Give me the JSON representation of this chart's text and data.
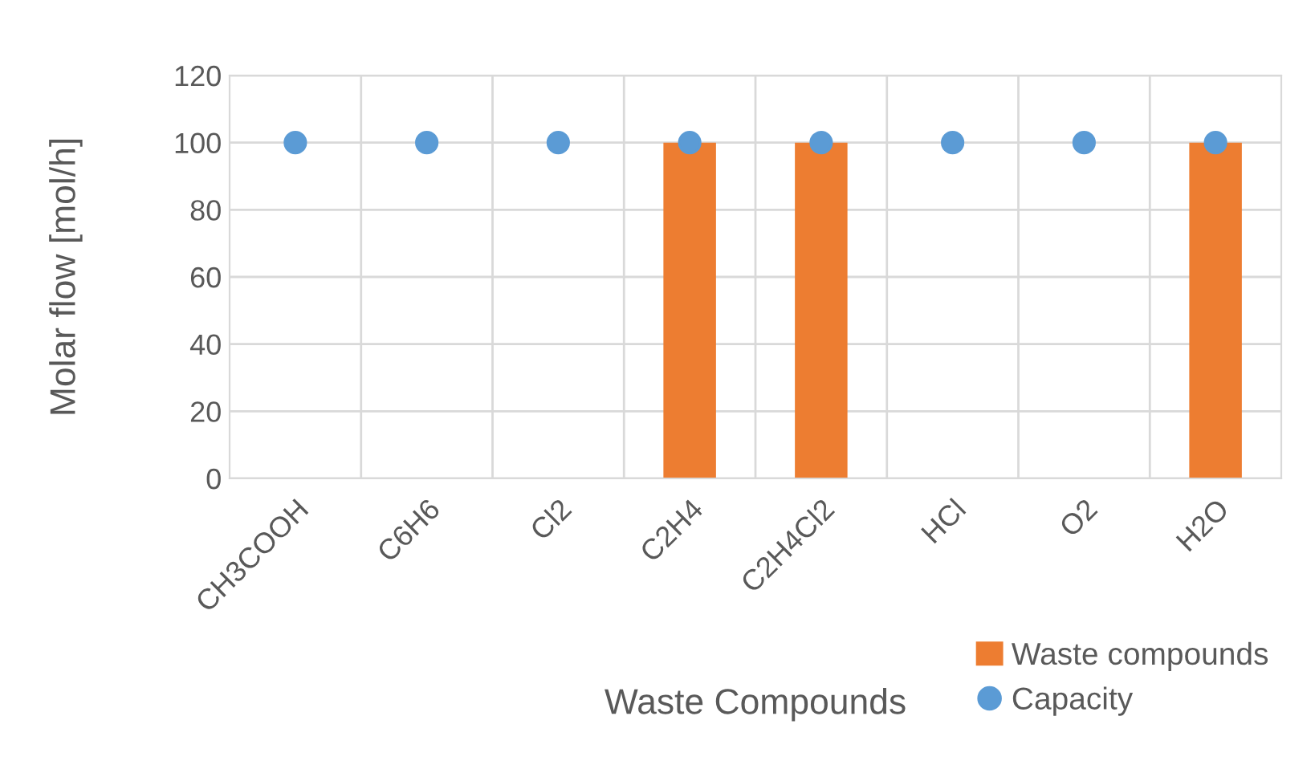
{
  "chart_data": {
    "type": "bar",
    "xlabel": "Waste Compounds",
    "ylabel": "Molar flow [mol/h]",
    "categories": [
      "CH3COOH",
      "C6H6",
      "Cl2",
      "C2H4",
      "C2H4Cl2",
      "HCl",
      "O2",
      "H2O"
    ],
    "series": [
      {
        "name": "Waste compounds",
        "color": "#ed7d31",
        "values": [
          0,
          0,
          0,
          100,
          100,
          0,
          0,
          100
        ]
      },
      {
        "name": "Capacity",
        "type": "scatter",
        "color": "#5b9bd5",
        "values": [
          100,
          100,
          100,
          100,
          100,
          100,
          100,
          100
        ]
      }
    ],
    "ylim": [
      0,
      120
    ],
    "yticks": [
      0,
      20,
      40,
      60,
      80,
      100,
      120
    ],
    "grid": true,
    "legend": "bottom right",
    "marker": "circle"
  }
}
